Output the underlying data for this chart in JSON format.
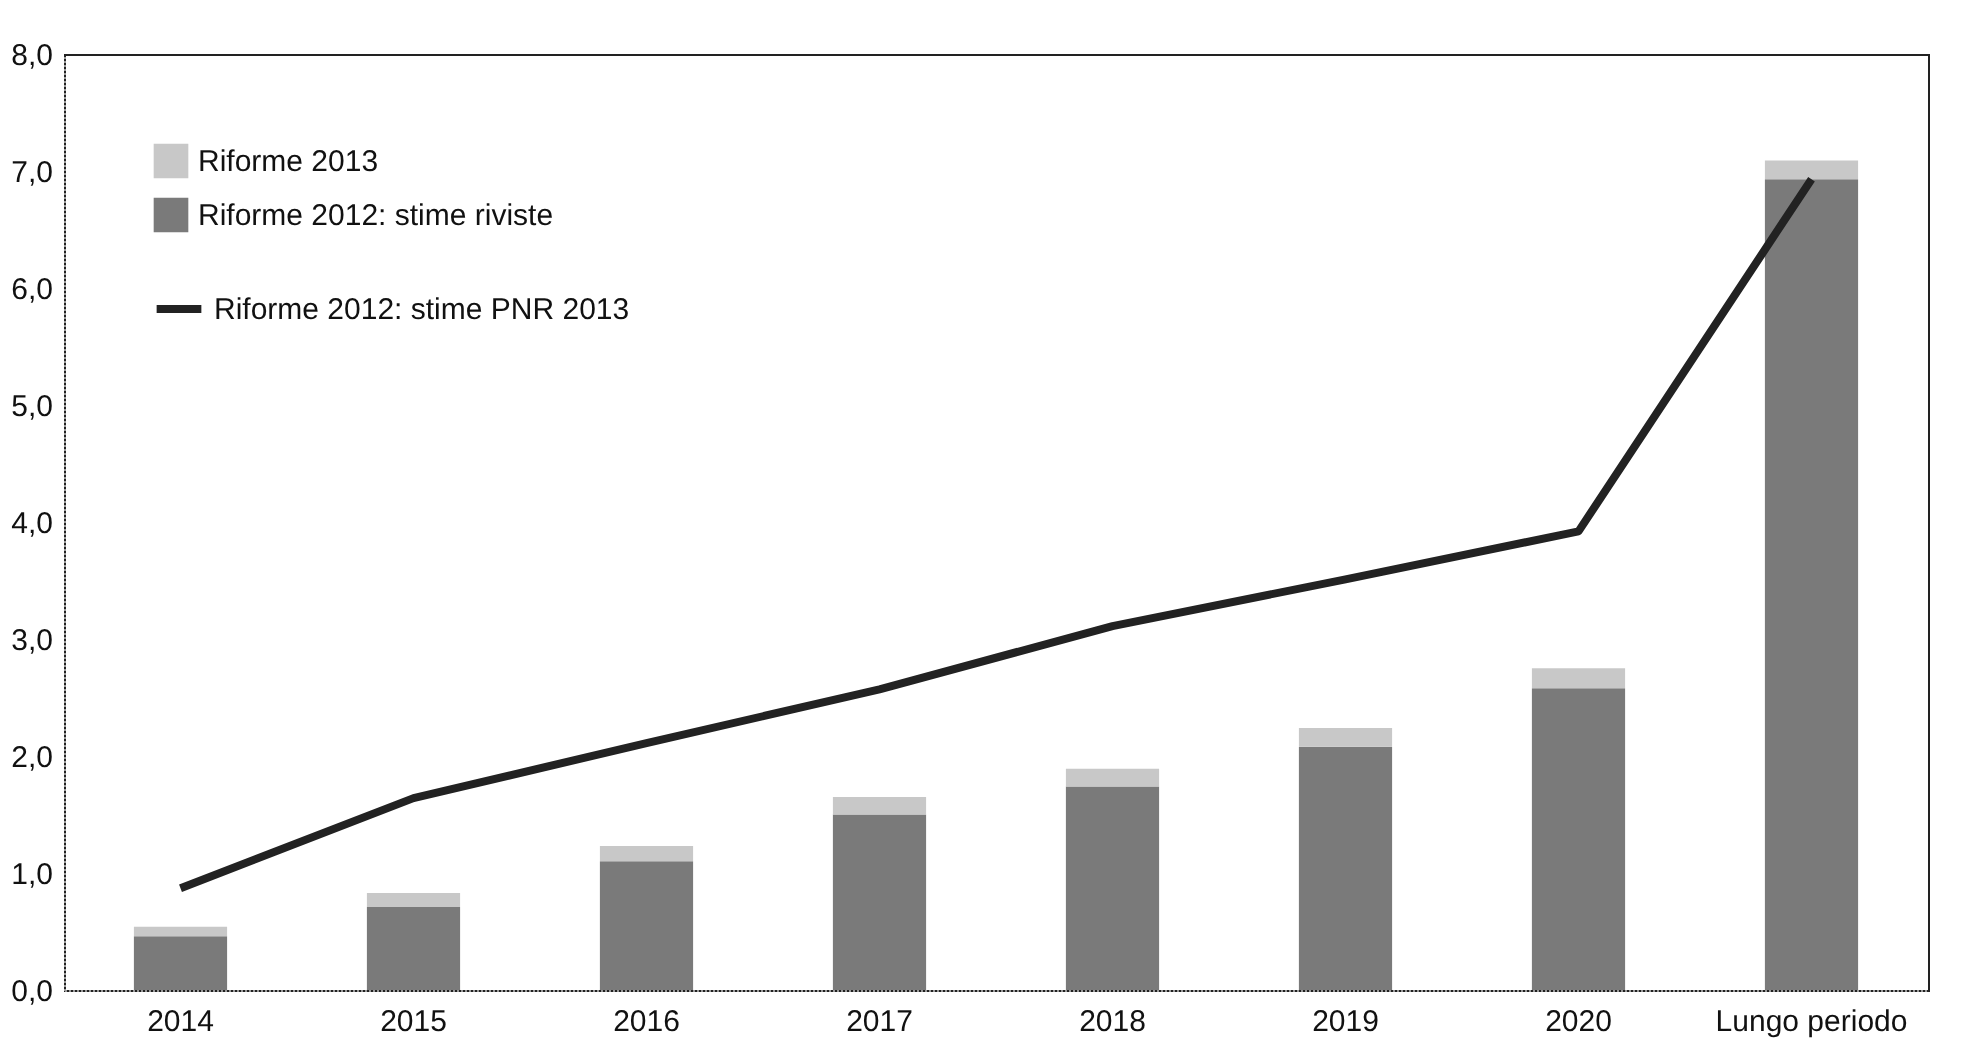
{
  "chart_data": {
    "type": "bar",
    "stacked": true,
    "categories": [
      "2014",
      "2015",
      "2016",
      "2017",
      "2018",
      "2019",
      "2020",
      "Lungo periodo"
    ],
    "series": [
      {
        "name": "Riforme 2012: stime riviste",
        "color": "#7a7a7a",
        "values": [
          0.46,
          0.71,
          1.1,
          1.5,
          1.74,
          2.08,
          2.58,
          6.93
        ]
      },
      {
        "name": "Riforme 2013",
        "color": "#c8c8c8",
        "values": [
          0.08,
          0.12,
          0.13,
          0.15,
          0.15,
          0.16,
          0.17,
          0.16
        ]
      },
      {
        "name": "Riforme 2012: stime PNR 2013",
        "type": "line",
        "color": "#222222",
        "values": [
          0.87,
          1.64,
          2.11,
          2.57,
          3.11,
          3.51,
          3.92,
          6.93
        ]
      }
    ],
    "ylim": [
      0,
      8
    ],
    "yticks": [
      {
        "value": 0,
        "label": "0,0"
      },
      {
        "value": 1,
        "label": "1,0"
      },
      {
        "value": 2,
        "label": "2,0"
      },
      {
        "value": 3,
        "label": "3,0"
      },
      {
        "value": 4,
        "label": "4,0"
      },
      {
        "value": 5,
        "label": "5,0"
      },
      {
        "value": 6,
        "label": "6,0"
      },
      {
        "value": 7,
        "label": "7,0"
      },
      {
        "value": 8,
        "label": "8,0"
      }
    ],
    "grid": false,
    "legend": "top left",
    "marker": "none"
  }
}
